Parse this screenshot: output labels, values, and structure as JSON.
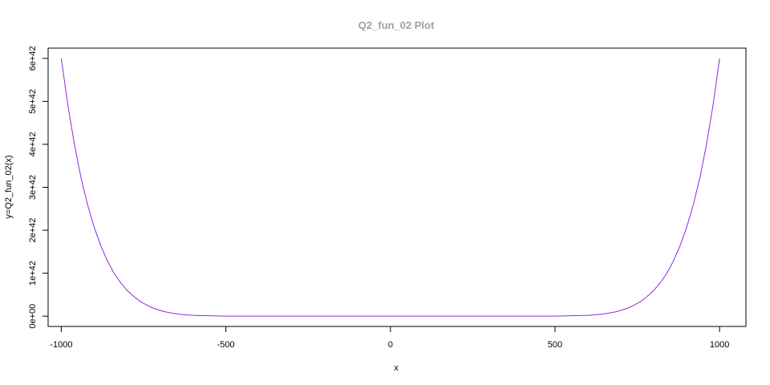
{
  "chart_data": {
    "type": "line",
    "title": "Q2_fun_02 Plot",
    "xlabel": "x",
    "ylabel": "y=Q2_fun_02(x)",
    "xlim": [
      -1040,
      1080
    ],
    "ylim": [
      -2.4e+41,
      6.24e+42
    ],
    "x_ticks": [
      -1000,
      -500,
      0,
      500,
      1000
    ],
    "x_tick_labels": [
      "-1000",
      "-500",
      "0",
      "500",
      "1000"
    ],
    "y_ticks": [
      0,
      1e+42,
      2e+42,
      3e+42,
      4e+42,
      5e+42,
      6e+42
    ],
    "y_tick_labels": [
      "0e+00",
      "1e+42",
      "2e+42",
      "3e+42",
      "4e+42",
      "5e+42",
      "6e+42"
    ],
    "grid": false,
    "series": [
      {
        "color": "#8a2be2",
        "x": [
          -1000,
          -980,
          -960,
          -940,
          -920,
          -900,
          -880,
          -860,
          -840,
          -820,
          -800,
          -780,
          -760,
          -740,
          -720,
          -700,
          -680,
          -660,
          -640,
          -620,
          -600,
          -500,
          -400,
          -300,
          -200,
          -100,
          0,
          100,
          200,
          300,
          400,
          500,
          600,
          620,
          640,
          660,
          680,
          700,
          720,
          740,
          760,
          780,
          800,
          820,
          840,
          860,
          880,
          900,
          920,
          940,
          960,
          980,
          1000
        ],
        "y": [
          6e+42,
          4.91e+42,
          3.99e+42,
          3.22e+42,
          2.59e+42,
          2.07e+42,
          1.64e+42,
          1.29e+42,
          1e+42,
          7.8e+41,
          6e+41,
          4.6e+41,
          3.4e+41,
          2.55e+41,
          1.85e+41,
          1.33e+41,
          9.4e+40,
          6.5e+40,
          4.4e+40,
          2.9e+40,
          1.9e+40,
          1.2e+39,
          0,
          0,
          0,
          0,
          0,
          0,
          0,
          0,
          0,
          1.2e+39,
          1.9e+40,
          2.9e+40,
          4.4e+40,
          6.5e+40,
          9.4e+40,
          1.33e+41,
          1.85e+41,
          2.55e+41,
          3.4e+41,
          4.6e+41,
          6e+41,
          7.8e+41,
          1e+42,
          1.29e+42,
          1.64e+42,
          2.07e+42,
          2.59e+42,
          3.22e+42,
          3.99e+42,
          4.91e+42,
          6e+42
        ]
      }
    ]
  }
}
